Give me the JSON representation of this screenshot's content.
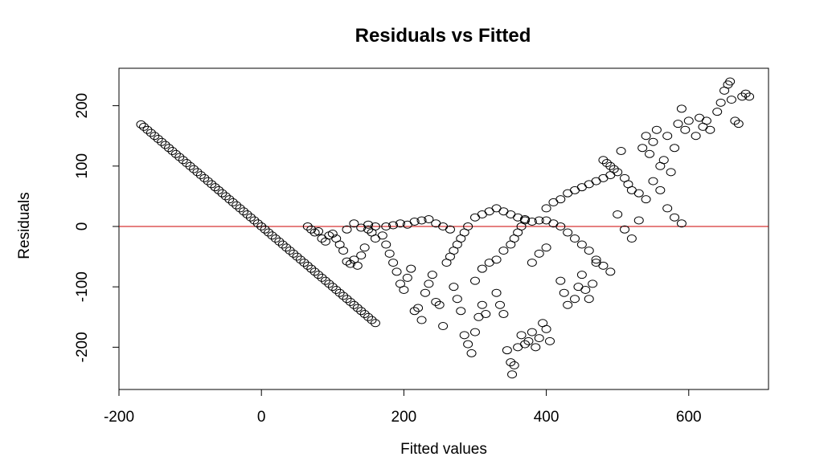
{
  "chart_data": {
    "type": "scatter",
    "title": "Residuals vs Fitted",
    "xlabel": "Fitted values",
    "ylabel": "Residuals",
    "xlim": [
      -200,
      712
    ],
    "ylim": [
      -270,
      262
    ],
    "x_ticks": [
      -200,
      0,
      200,
      400,
      600
    ],
    "y_ticks": [
      -200,
      -100,
      0,
      100,
      200
    ],
    "x_tick_labels": [
      "-200",
      "0",
      "200",
      "400",
      "600"
    ],
    "y_tick_labels": [
      "-200",
      "-100",
      "0",
      "100",
      "200"
    ],
    "reference_line": {
      "y": 0,
      "color": "#cc0000"
    },
    "grid": false,
    "legend": "none",
    "series": [
      {
        "points": [
          [
            -169,
            169
          ],
          [
            -165,
            165
          ],
          [
            -160,
            160
          ],
          [
            -155,
            155
          ],
          [
            -150,
            150
          ],
          [
            -145,
            145
          ],
          [
            -140,
            140
          ],
          [
            -135,
            135
          ],
          [
            -130,
            130
          ],
          [
            -125,
            125
          ],
          [
            -120,
            120
          ],
          [
            -115,
            115
          ],
          [
            -110,
            110
          ],
          [
            -105,
            105
          ],
          [
            -100,
            100
          ],
          [
            -95,
            95
          ],
          [
            -90,
            90
          ],
          [
            -85,
            85
          ],
          [
            -80,
            80
          ],
          [
            -75,
            75
          ],
          [
            -70,
            70
          ],
          [
            -65,
            65
          ],
          [
            -60,
            60
          ],
          [
            -55,
            55
          ],
          [
            -50,
            50
          ],
          [
            -45,
            45
          ],
          [
            -40,
            40
          ],
          [
            -35,
            35
          ],
          [
            -30,
            30
          ],
          [
            -25,
            25
          ],
          [
            -20,
            20
          ],
          [
            -15,
            15
          ],
          [
            -10,
            10
          ],
          [
            -5,
            5
          ],
          [
            0,
            0
          ],
          [
            5,
            -5
          ],
          [
            10,
            -10
          ],
          [
            15,
            -15
          ],
          [
            20,
            -20
          ],
          [
            25,
            -25
          ],
          [
            30,
            -30
          ],
          [
            35,
            -35
          ],
          [
            40,
            -40
          ],
          [
            45,
            -45
          ],
          [
            50,
            -50
          ],
          [
            55,
            -55
          ],
          [
            60,
            -60
          ],
          [
            65,
            -65
          ],
          [
            70,
            -70
          ],
          [
            75,
            -75
          ],
          [
            80,
            -80
          ],
          [
            85,
            -85
          ],
          [
            90,
            -90
          ],
          [
            95,
            -95
          ],
          [
            100,
            -100
          ],
          [
            105,
            -105
          ],
          [
            110,
            -110
          ],
          [
            115,
            -115
          ],
          [
            120,
            -120
          ],
          [
            125,
            -125
          ],
          [
            130,
            -130
          ],
          [
            135,
            -135
          ],
          [
            140,
            -140
          ],
          [
            145,
            -145
          ],
          [
            150,
            -150
          ],
          [
            155,
            -155
          ],
          [
            160,
            -160
          ],
          [
            65,
            0
          ],
          [
            70,
            -5
          ],
          [
            75,
            -10
          ],
          [
            80,
            -8
          ],
          [
            85,
            -20
          ],
          [
            90,
            -25
          ],
          [
            95,
            -15
          ],
          [
            100,
            -12
          ],
          [
            105,
            -20
          ],
          [
            110,
            -30
          ],
          [
            115,
            -40
          ],
          [
            120,
            -58
          ],
          [
            125,
            -62
          ],
          [
            130,
            -55
          ],
          [
            135,
            -65
          ],
          [
            140,
            -48
          ],
          [
            145,
            -35
          ],
          [
            150,
            -5
          ],
          [
            155,
            -10
          ],
          [
            160,
            -20
          ],
          [
            120,
            -5
          ],
          [
            130,
            5
          ],
          [
            140,
            -2
          ],
          [
            150,
            3
          ],
          [
            160,
            0
          ],
          [
            170,
            -15
          ],
          [
            175,
            -30
          ],
          [
            180,
            -45
          ],
          [
            185,
            -60
          ],
          [
            190,
            -75
          ],
          [
            195,
            -95
          ],
          [
            200,
            -105
          ],
          [
            205,
            -85
          ],
          [
            210,
            -70
          ],
          [
            215,
            -140
          ],
          [
            220,
            -135
          ],
          [
            225,
            -155
          ],
          [
            230,
            -110
          ],
          [
            235,
            -95
          ],
          [
            240,
            -80
          ],
          [
            245,
            -125
          ],
          [
            250,
            -130
          ],
          [
            255,
            -165
          ],
          [
            260,
            -60
          ],
          [
            265,
            -50
          ],
          [
            270,
            -40
          ],
          [
            275,
            -30
          ],
          [
            280,
            -20
          ],
          [
            285,
            -10
          ],
          [
            290,
            0
          ],
          [
            175,
            0
          ],
          [
            185,
            2
          ],
          [
            195,
            5
          ],
          [
            205,
            3
          ],
          [
            215,
            8
          ],
          [
            225,
            10
          ],
          [
            235,
            12
          ],
          [
            245,
            5
          ],
          [
            255,
            0
          ],
          [
            265,
            -5
          ],
          [
            270,
            -100
          ],
          [
            275,
            -120
          ],
          [
            280,
            -140
          ],
          [
            285,
            -180
          ],
          [
            290,
            -195
          ],
          [
            295,
            -210
          ],
          [
            300,
            -175
          ],
          [
            305,
            -150
          ],
          [
            310,
            -130
          ],
          [
            315,
            -145
          ],
          [
            300,
            -90
          ],
          [
            310,
            -70
          ],
          [
            320,
            -60
          ],
          [
            330,
            -55
          ],
          [
            340,
            -40
          ],
          [
            350,
            -30
          ],
          [
            355,
            -20
          ],
          [
            360,
            -10
          ],
          [
            365,
            0
          ],
          [
            370,
            10
          ],
          [
            330,
            -110
          ],
          [
            335,
            -130
          ],
          [
            340,
            -145
          ],
          [
            345,
            -205
          ],
          [
            350,
            -225
          ],
          [
            352,
            -245
          ],
          [
            355,
            -230
          ],
          [
            360,
            -200
          ],
          [
            365,
            -180
          ],
          [
            370,
            -195
          ],
          [
            375,
            -190
          ],
          [
            380,
            -175
          ],
          [
            385,
            -200
          ],
          [
            390,
            -185
          ],
          [
            395,
            -160
          ],
          [
            400,
            -170
          ],
          [
            405,
            -190
          ],
          [
            380,
            -60
          ],
          [
            390,
            -45
          ],
          [
            400,
            -35
          ],
          [
            300,
            15
          ],
          [
            310,
            20
          ],
          [
            320,
            25
          ],
          [
            330,
            30
          ],
          [
            340,
            25
          ],
          [
            350,
            20
          ],
          [
            360,
            15
          ],
          [
            370,
            12
          ],
          [
            380,
            8
          ],
          [
            390,
            10
          ],
          [
            400,
            30
          ],
          [
            410,
            40
          ],
          [
            420,
            45
          ],
          [
            430,
            55
          ],
          [
            440,
            60
          ],
          [
            450,
            65
          ],
          [
            460,
            70
          ],
          [
            470,
            75
          ],
          [
            480,
            80
          ],
          [
            490,
            85
          ],
          [
            400,
            10
          ],
          [
            410,
            5
          ],
          [
            420,
            0
          ],
          [
            430,
            -10
          ],
          [
            440,
            -20
          ],
          [
            450,
            -30
          ],
          [
            460,
            -40
          ],
          [
            470,
            -55
          ],
          [
            480,
            -65
          ],
          [
            490,
            -75
          ],
          [
            420,
            -90
          ],
          [
            425,
            -110
          ],
          [
            430,
            -130
          ],
          [
            440,
            -120
          ],
          [
            445,
            -100
          ],
          [
            450,
            -80
          ],
          [
            455,
            -105
          ],
          [
            460,
            -120
          ],
          [
            465,
            -95
          ],
          [
            470,
            -60
          ],
          [
            480,
            110
          ],
          [
            485,
            105
          ],
          [
            490,
            100
          ],
          [
            495,
            95
          ],
          [
            500,
            90
          ],
          [
            505,
            125
          ],
          [
            510,
            80
          ],
          [
            515,
            70
          ],
          [
            520,
            60
          ],
          [
            530,
            55
          ],
          [
            535,
            130
          ],
          [
            540,
            150
          ],
          [
            545,
            120
          ],
          [
            550,
            140
          ],
          [
            555,
            160
          ],
          [
            560,
            100
          ],
          [
            565,
            110
          ],
          [
            570,
            150
          ],
          [
            575,
            90
          ],
          [
            580,
            130
          ],
          [
            585,
            170
          ],
          [
            590,
            195
          ],
          [
            595,
            160
          ],
          [
            600,
            175
          ],
          [
            610,
            150
          ],
          [
            615,
            180
          ],
          [
            620,
            165
          ],
          [
            625,
            175
          ],
          [
            630,
            160
          ],
          [
            640,
            190
          ],
          [
            645,
            205
          ],
          [
            650,
            225
          ],
          [
            655,
            235
          ],
          [
            658,
            240
          ],
          [
            660,
            210
          ],
          [
            665,
            175
          ],
          [
            670,
            170
          ],
          [
            675,
            215
          ],
          [
            680,
            220
          ],
          [
            685,
            215
          ],
          [
            500,
            20
          ],
          [
            510,
            -5
          ],
          [
            520,
            -20
          ],
          [
            530,
            10
          ],
          [
            540,
            45
          ],
          [
            550,
            75
          ],
          [
            560,
            60
          ],
          [
            570,
            30
          ],
          [
            580,
            15
          ],
          [
            590,
            5
          ]
        ]
      }
    ]
  }
}
